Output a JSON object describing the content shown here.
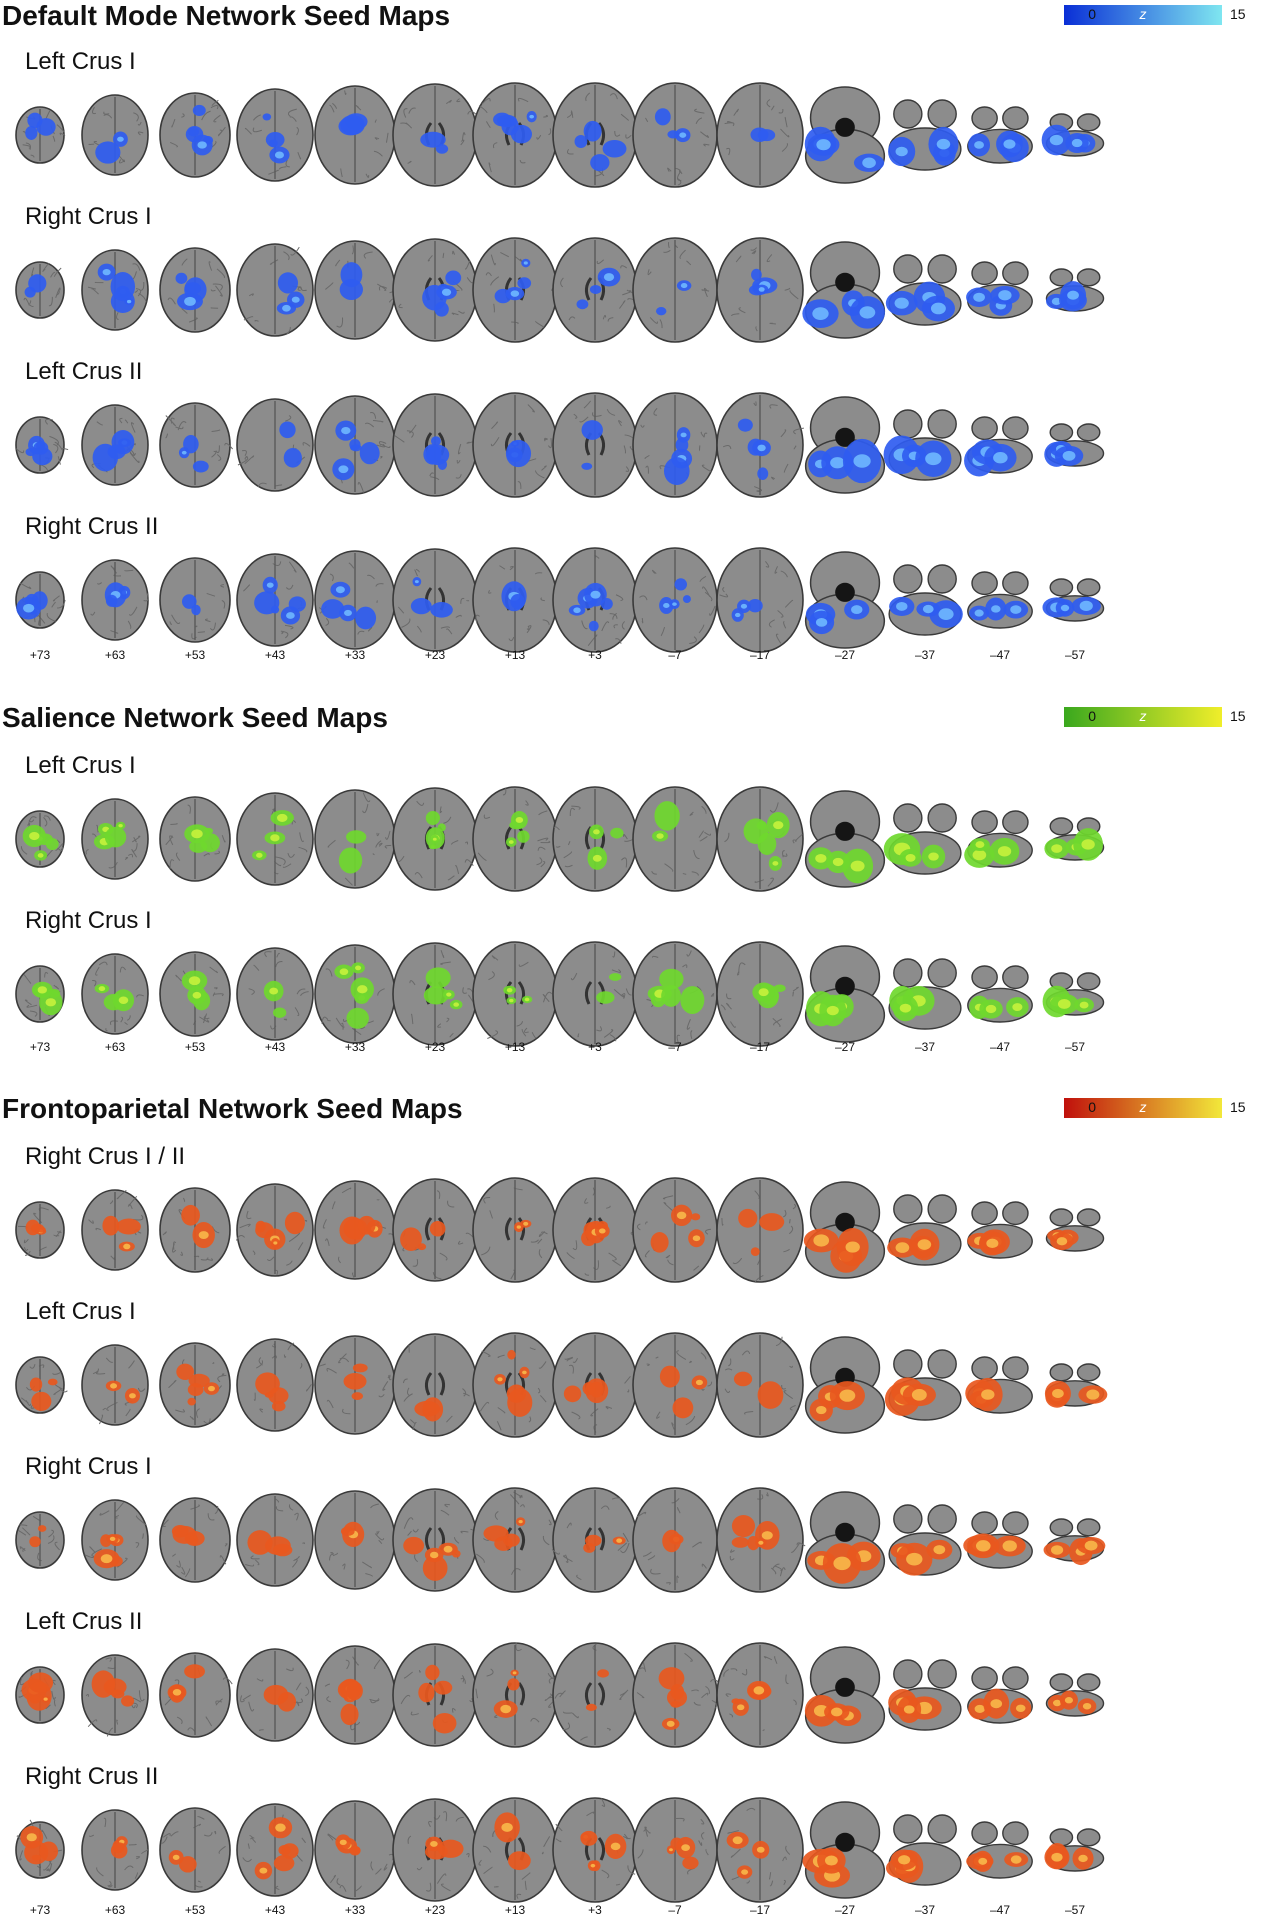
{
  "slice_labels": [
    "+73",
    "+63",
    "+53",
    "+43",
    "+33",
    "+23",
    "+13",
    "+3",
    "–7",
    "–17",
    "–27",
    "–37",
    "–47",
    "–57"
  ],
  "sections": [
    {
      "title": "Default Mode Network Seed Maps",
      "colorbar": {
        "min": "0",
        "max": "15",
        "label": "z",
        "from": "#0a2fd6",
        "to": "#7fe6f0"
      },
      "overlay_color": "#2f5cf0",
      "overlay_hot": "#6fb8ff",
      "rows": [
        "Left Crus I",
        "Right Crus I",
        "Left Crus II",
        "Right Crus II"
      ]
    },
    {
      "title": "Salience Network Seed Maps",
      "colorbar": {
        "min": "0",
        "max": "15",
        "label": "z",
        "from": "#3aa81e",
        "to": "#f0ee2a"
      },
      "overlay_color": "#6fd82e",
      "overlay_hot": "#c6f23c",
      "rows": [
        "Left Crus I",
        "Right Crus I"
      ]
    },
    {
      "title": "Frontoparietal Network Seed Maps",
      "colorbar": {
        "min": "0",
        "max": "15",
        "label": "z",
        "from": "#c0100c",
        "to": "#f2e83a"
      },
      "overlay_color": "#e8581e",
      "overlay_hot": "#f8b84a",
      "rows": [
        "Right Crus I / II",
        "Left Crus I",
        "Right Crus I",
        "Left Crus II",
        "Right Crus II"
      ]
    }
  ],
  "colors": {
    "brain_gray": "#8c8c8c",
    "brain_outline": "#3a3a3a",
    "dark": "#151515"
  }
}
